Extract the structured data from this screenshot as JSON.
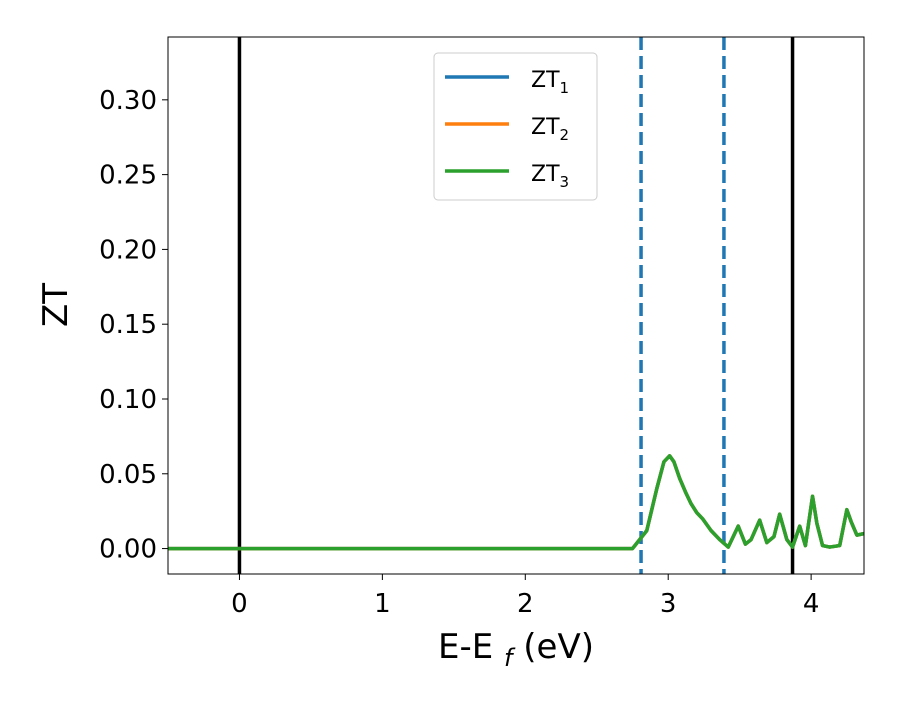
{
  "chart_data": {
    "type": "line",
    "title": "",
    "xlabel": "E-E",
    "xlabel_sub": "f",
    "xlabel_unit": " (eV)",
    "ylabel": "ZT",
    "xlim": [
      -0.5,
      4.37
    ],
    "ylim": [
      -0.017,
      0.342
    ],
    "grid": false,
    "legend_position": "upper-center",
    "xticks": [
      0,
      1,
      2,
      3,
      4
    ],
    "xtick_labels": [
      "0",
      "1",
      "2",
      "3",
      "4"
    ],
    "yticks": [
      0.0,
      0.05,
      0.1,
      0.15,
      0.2,
      0.25,
      0.3
    ],
    "ytick_labels": [
      "0.00",
      "0.05",
      "0.10",
      "0.15",
      "0.20",
      "0.25",
      "0.30"
    ],
    "vertical_lines": [
      {
        "x": 0.0,
        "style": "solid",
        "color": "#000000"
      },
      {
        "x": 2.81,
        "style": "dashed",
        "color": "#1f77b4"
      },
      {
        "x": 3.39,
        "style": "dashed",
        "color": "#1f77b4"
      },
      {
        "x": 3.87,
        "style": "solid",
        "color": "#000000"
      }
    ],
    "series": [
      {
        "name": "ZT",
        "subscript": "1",
        "color": "#1f77b4",
        "x": [
          -0.5,
          0.0,
          1.0,
          2.0,
          2.75,
          2.85,
          2.92,
          2.97,
          3.01,
          3.04,
          3.08,
          3.12,
          3.16,
          3.2,
          3.24,
          3.3,
          3.36,
          3.42,
          3.49,
          3.54,
          3.58,
          3.64,
          3.69,
          3.74,
          3.78,
          3.83,
          3.87,
          3.92,
          3.96,
          4.01,
          4.04,
          4.08,
          4.13,
          4.2,
          4.25,
          4.28,
          4.32,
          4.37
        ],
        "y": [
          0.0,
          0.0,
          0.0,
          0.0,
          0.0,
          0.012,
          0.04,
          0.058,
          0.062,
          0.058,
          0.047,
          0.038,
          0.03,
          0.024,
          0.02,
          0.012,
          0.006,
          0.001,
          0.015,
          0.003,
          0.006,
          0.019,
          0.004,
          0.008,
          0.023,
          0.006,
          0.001,
          0.015,
          0.002,
          0.035,
          0.017,
          0.002,
          0.001,
          0.002,
          0.026,
          0.018,
          0.009,
          0.01
        ]
      },
      {
        "name": "ZT",
        "subscript": "2",
        "color": "#ff7f0e",
        "x": [
          -0.5,
          0.0,
          1.0,
          2.0,
          2.75,
          2.85,
          2.92,
          2.97,
          3.01,
          3.04,
          3.08,
          3.12,
          3.16,
          3.2,
          3.24,
          3.3,
          3.36,
          3.42,
          3.49,
          3.54,
          3.58,
          3.64,
          3.69,
          3.74,
          3.78,
          3.83,
          3.87,
          3.92,
          3.96,
          4.01,
          4.04,
          4.08,
          4.13,
          4.2,
          4.25,
          4.28,
          4.32,
          4.37
        ],
        "y": [
          0.0,
          0.0,
          0.0,
          0.0,
          0.0,
          0.012,
          0.04,
          0.058,
          0.062,
          0.058,
          0.047,
          0.038,
          0.03,
          0.024,
          0.02,
          0.012,
          0.006,
          0.001,
          0.015,
          0.003,
          0.006,
          0.019,
          0.004,
          0.008,
          0.023,
          0.006,
          0.001,
          0.015,
          0.002,
          0.035,
          0.017,
          0.002,
          0.001,
          0.002,
          0.026,
          0.018,
          0.009,
          0.01
        ]
      },
      {
        "name": "ZT",
        "subscript": "3",
        "color": "#2ca02c",
        "x": [
          -0.5,
          0.0,
          1.0,
          2.0,
          2.75,
          2.85,
          2.92,
          2.97,
          3.01,
          3.04,
          3.08,
          3.12,
          3.16,
          3.2,
          3.24,
          3.3,
          3.36,
          3.42,
          3.49,
          3.54,
          3.58,
          3.64,
          3.69,
          3.74,
          3.78,
          3.83,
          3.87,
          3.92,
          3.96,
          4.01,
          4.04,
          4.08,
          4.13,
          4.2,
          4.25,
          4.28,
          4.32,
          4.37
        ],
        "y": [
          0.0,
          0.0,
          0.0,
          0.0,
          0.0,
          0.012,
          0.04,
          0.058,
          0.062,
          0.058,
          0.047,
          0.038,
          0.03,
          0.024,
          0.02,
          0.012,
          0.006,
          0.001,
          0.015,
          0.003,
          0.006,
          0.019,
          0.004,
          0.008,
          0.023,
          0.006,
          0.001,
          0.015,
          0.002,
          0.035,
          0.017,
          0.002,
          0.001,
          0.002,
          0.026,
          0.018,
          0.009,
          0.01
        ]
      }
    ]
  }
}
